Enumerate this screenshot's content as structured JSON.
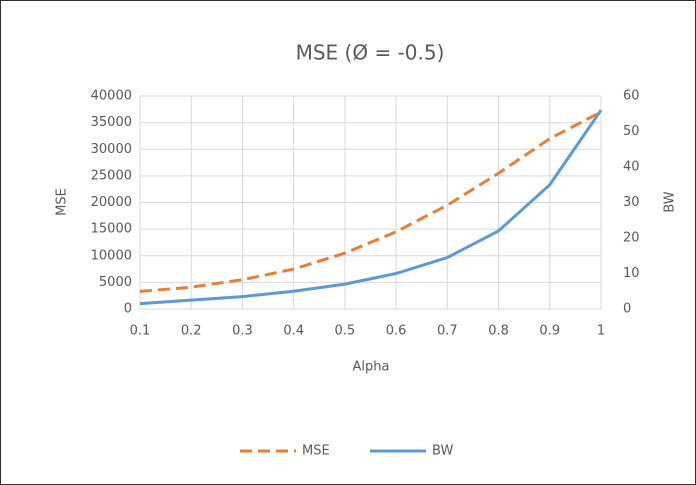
{
  "chart_data": {
    "type": "line",
    "title": "MSE (Ø = -0.5)",
    "x_label": "Alpha",
    "y_label": "MSE",
    "y2_label": "BW",
    "x": [
      0.1,
      0.2,
      0.3,
      0.4,
      0.5,
      0.6,
      0.7,
      0.8,
      0.9,
      1
    ],
    "series": [
      {
        "name": "MSE",
        "color": "#ed7d31",
        "dash": true,
        "values": [
          3300,
          4100,
          5500,
          7500,
          10500,
          14500,
          19500,
          25500,
          32000,
          37000
        ]
      },
      {
        "name": "BW",
        "color": "#5b9bd5",
        "axis": "y2",
        "values": [
          1.5,
          2.5,
          3.5,
          5,
          7,
          10,
          14.5,
          22,
          35,
          56
        ]
      }
    ],
    "xlim": [
      0.1,
      1
    ],
    "xticks": [
      0.1,
      0.2,
      0.3,
      0.4,
      0.5,
      0.6,
      0.7,
      0.8,
      0.9,
      1
    ],
    "ylim": [
      0,
      40000
    ],
    "yticks": [
      0,
      5000,
      10000,
      15000,
      20000,
      25000,
      30000,
      35000,
      40000
    ],
    "y2lim": [
      0,
      60
    ],
    "y2ticks": [
      0,
      10,
      20,
      30,
      40,
      50,
      60
    ],
    "grid": true,
    "legend": "bottom"
  }
}
